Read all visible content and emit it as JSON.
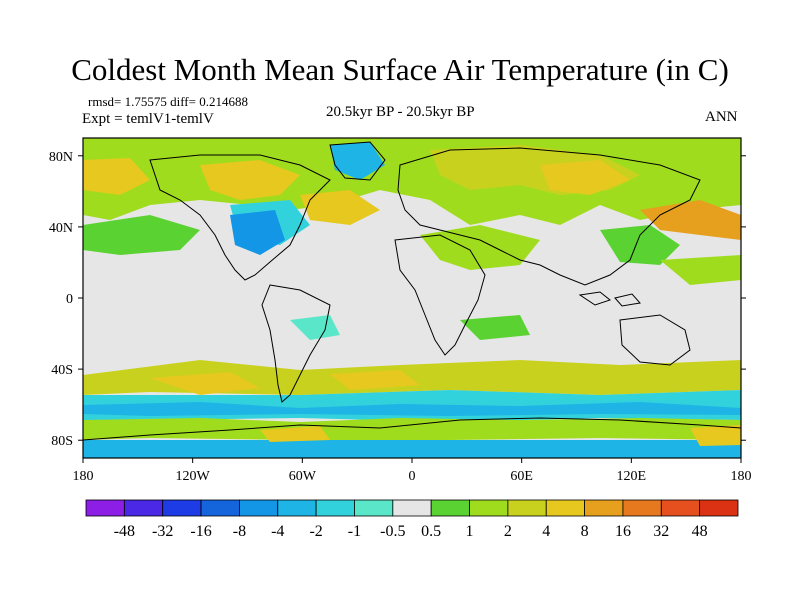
{
  "title": "Coldest Month Mean Surface Air Temperature (in C)",
  "stats": "rmsd= 1.75575 diff= 0.214688",
  "expt": "Expt = temlV1-temlV",
  "period": "20.5kyr BP - 20.5kyr BP",
  "season": "ANN",
  "map": {
    "lon_ticks": [
      "180",
      "120W",
      "60W",
      "0",
      "60E",
      "120E",
      "180"
    ],
    "lat_ticks": [
      "80N",
      "40N",
      "0",
      "40S",
      "80S"
    ]
  },
  "colorbar": {
    "colors": [
      "#8c1ee6",
      "#4b28e6",
      "#1e3ce6",
      "#1464dc",
      "#1496e6",
      "#1eb4e6",
      "#32d2dc",
      "#5ae6c8",
      "#e6e6e6",
      "#5ad232",
      "#a0dc1e",
      "#c8d21e",
      "#e6c81e",
      "#e6a01e",
      "#e6781e",
      "#e6501e",
      "#dc3214"
    ],
    "labels": [
      "-48",
      "-32",
      "-16",
      "-8",
      "-4",
      "-2",
      "-1",
      "-0.5",
      "0.5",
      "1",
      "2",
      "4",
      "8",
      "16",
      "32",
      "48"
    ]
  }
}
